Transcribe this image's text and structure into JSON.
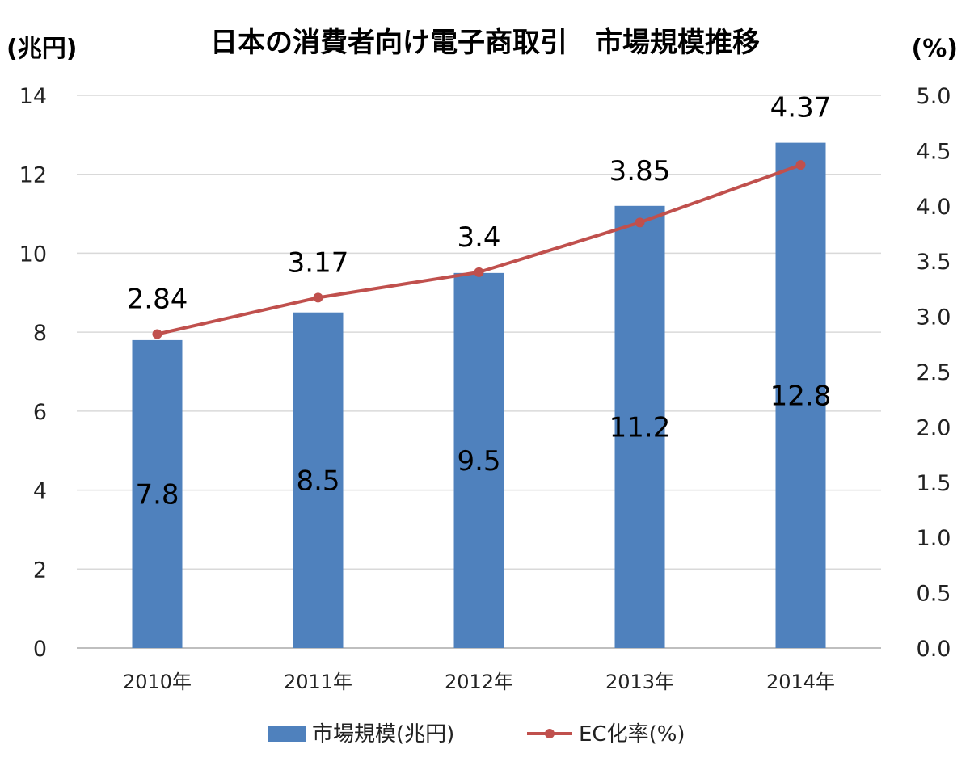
{
  "chart_data": {
    "type": "bar",
    "title": "日本の消費者向け電子商取引　市場規模推移",
    "left_unit": "(兆円)",
    "right_unit": "(%)",
    "categories": [
      "2010年",
      "2011年",
      "2012年",
      "2013年",
      "2014年"
    ],
    "series": [
      {
        "name": "市場規模(兆円)",
        "type": "bar",
        "axis": "left",
        "color": "#4f81bd",
        "values": [
          7.8,
          8.5,
          9.5,
          11.2,
          12.8
        ],
        "labels": [
          "7.8",
          "8.5",
          "9.5",
          "11.2",
          "12.8"
        ]
      },
      {
        "name": "EC化率(%)",
        "type": "line",
        "axis": "right",
        "color": "#c0504d",
        "values": [
          2.84,
          3.17,
          3.4,
          3.85,
          4.37
        ],
        "labels": [
          "2.84",
          "3.17",
          "3.4",
          "3.85",
          "4.37"
        ]
      }
    ],
    "left_axis": {
      "ylim": [
        0,
        14
      ],
      "ticks": [
        "0",
        "2",
        "4",
        "6",
        "8",
        "10",
        "12",
        "14"
      ]
    },
    "right_axis": {
      "ylim": [
        0,
        5
      ],
      "ticks": [
        "0.0",
        "0.5",
        "1.0",
        "1.5",
        "2.0",
        "2.5",
        "3.0",
        "3.5",
        "4.0",
        "4.5",
        "5.0"
      ]
    },
    "grid": true,
    "legend_position": "bottom"
  }
}
